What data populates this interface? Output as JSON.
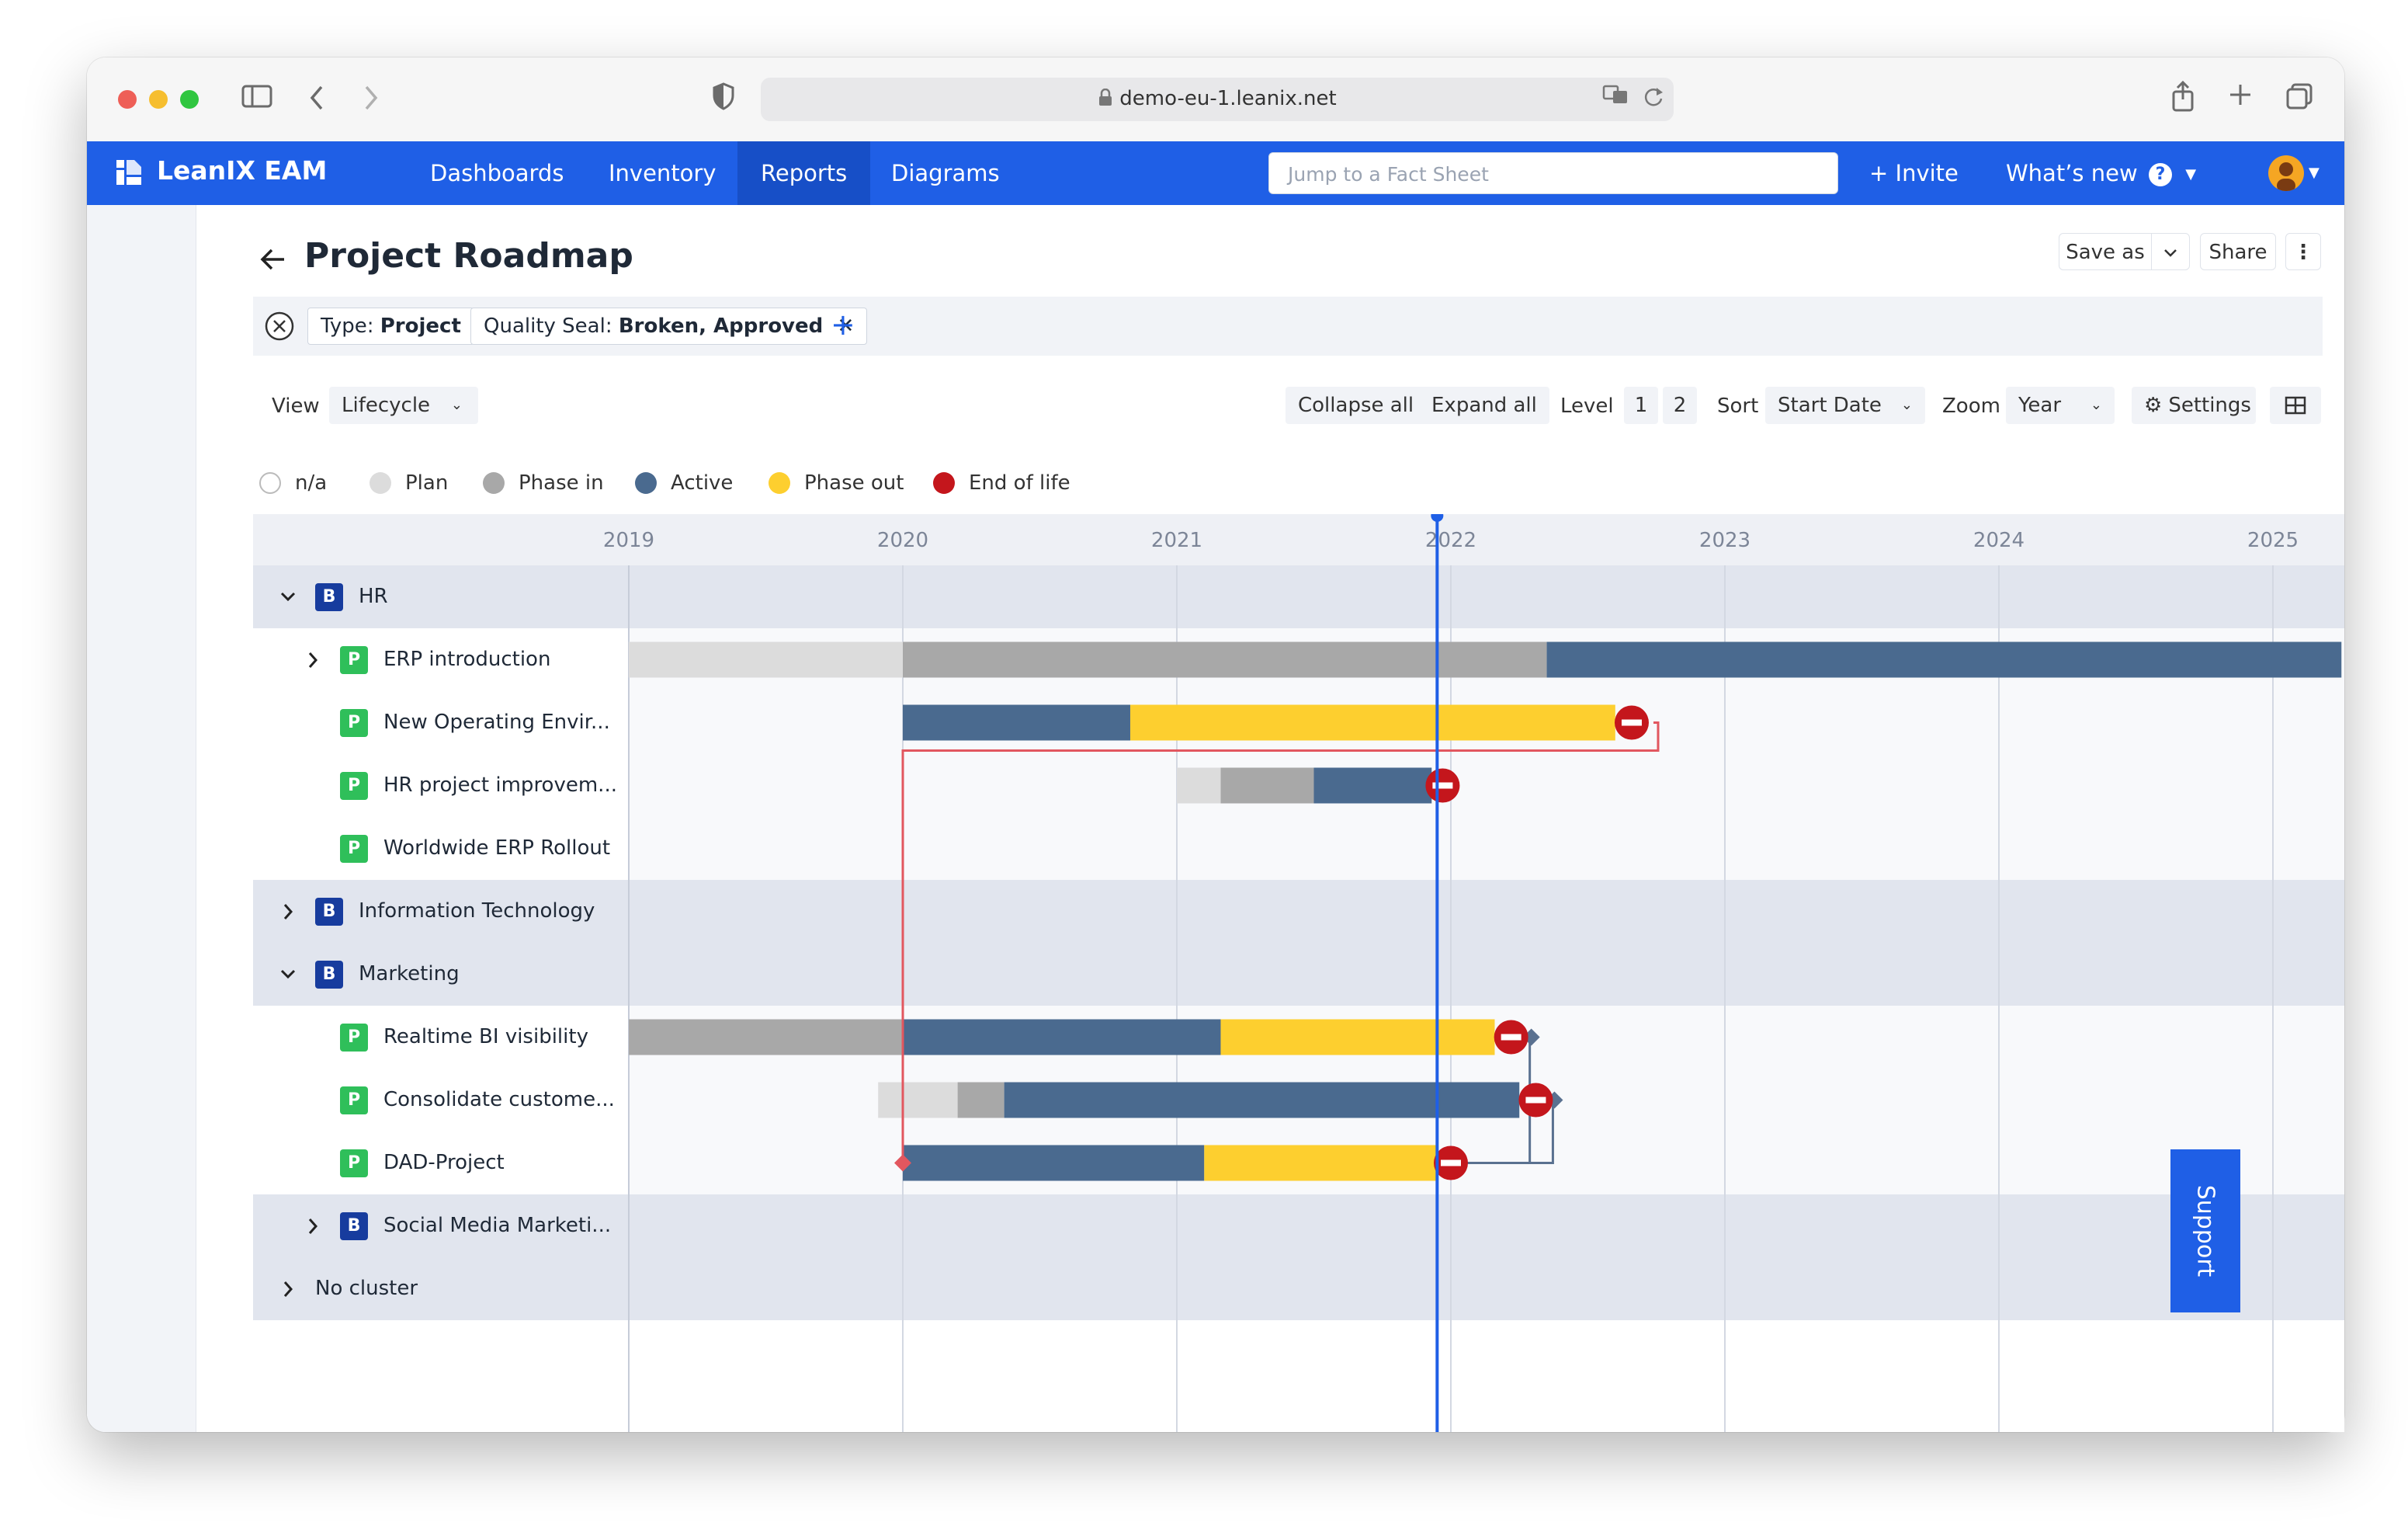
{
  "browser": {
    "url": "demo-eu-1.leanix.net"
  },
  "app": {
    "brand": "LeanIX EAM",
    "nav": [
      "Dashboards",
      "Inventory",
      "Reports",
      "Diagrams"
    ],
    "active_nav": "Reports",
    "search_placeholder": "Jump to a Fact Sheet",
    "invite": "+ Invite",
    "whats_new": "What’s new",
    "help": "?"
  },
  "page": {
    "title": "Project Roadmap",
    "save_as": "Save as",
    "share": "Share",
    "more": "⋮"
  },
  "filters": [
    {
      "key": "Type:",
      "value": "Project"
    },
    {
      "key": "Quality Seal:",
      "value": "Broken, Approved"
    }
  ],
  "toolbar": {
    "view_label": "View",
    "view_value": "Lifecycle",
    "collapse_all": "Collapse all",
    "expand_all": "Expand all",
    "level_label": "Level",
    "levels": [
      "1",
      "2"
    ],
    "sort_label": "Sort",
    "sort_value": "Start Date",
    "zoom_label": "Zoom",
    "zoom_value": "Year",
    "settings": "Settings"
  },
  "legend": [
    {
      "label": "n/a",
      "color": "#ffffff"
    },
    {
      "label": "Plan",
      "color": "#dcdcdc"
    },
    {
      "label": "Phase in",
      "color": "#a8a8a8"
    },
    {
      "label": "Active",
      "color": "#4a6a8f"
    },
    {
      "label": "Phase out",
      "color": "#fdcf2f"
    },
    {
      "label": "End of life",
      "color": "#c4161c"
    }
  ],
  "timeline": {
    "years": [
      "2019",
      "2020",
      "2021",
      "2022",
      "2023",
      "2024",
      "2025"
    ],
    "today": 2021.95
  },
  "rows": [
    {
      "type": "B",
      "label": "HR",
      "level": 0,
      "expanded": true,
      "group": true
    },
    {
      "type": "P",
      "label": "ERP introduction",
      "level": 1,
      "expandable": true,
      "segments": [
        {
          "phase": "Plan",
          "from": 2019.0,
          "to": 2020.0
        },
        {
          "phase": "Phase in",
          "from": 2020.0,
          "to": 2022.35
        },
        {
          "phase": "Active",
          "from": 2022.35,
          "to": 2025.25
        }
      ]
    },
    {
      "type": "P",
      "label": "New Operating Envir...",
      "level": 1,
      "segments": [
        {
          "phase": "Active",
          "from": 2020.0,
          "to": 2020.83
        },
        {
          "phase": "Phase out",
          "from": 2020.83,
          "to": 2022.6
        }
      ],
      "eol": 2022.66
    },
    {
      "type": "P",
      "label": "HR project improvem...",
      "level": 1,
      "segments": [
        {
          "phase": "Plan",
          "from": 2021.0,
          "to": 2021.16
        },
        {
          "phase": "Phase in",
          "from": 2021.16,
          "to": 2021.5
        },
        {
          "phase": "Active",
          "from": 2021.5,
          "to": 2021.93
        }
      ],
      "eol": 2021.97
    },
    {
      "type": "P",
      "label": "Worldwide ERP Rollout",
      "level": 1,
      "segments": []
    },
    {
      "type": "B",
      "label": "Information Technology",
      "level": 0,
      "expanded": false,
      "group": true
    },
    {
      "type": "B",
      "label": "Marketing",
      "level": 0,
      "expanded": true,
      "group": true
    },
    {
      "type": "P",
      "label": "Realtime BI visibility",
      "level": 1,
      "segments": [
        {
          "phase": "Phase in",
          "from": 2019.0,
          "to": 2020.0
        },
        {
          "phase": "Active",
          "from": 2020.0,
          "to": 2021.16
        },
        {
          "phase": "Phase out",
          "from": 2021.16,
          "to": 2022.16
        }
      ],
      "eol": 2022.22
    },
    {
      "type": "P",
      "label": "Consolidate custome...",
      "level": 1,
      "segments": [
        {
          "phase": "Plan",
          "from": 2019.91,
          "to": 2020.2
        },
        {
          "phase": "Phase in",
          "from": 2020.2,
          "to": 2020.37
        },
        {
          "phase": "Active",
          "from": 2020.37,
          "to": 2022.25
        }
      ],
      "eol": 2022.31
    },
    {
      "type": "P",
      "label": "DAD-Project",
      "level": 1,
      "segments": [
        {
          "phase": "Active",
          "from": 2020.0,
          "to": 2021.1
        },
        {
          "phase": "Phase out",
          "from": 2021.1,
          "to": 2021.95
        }
      ],
      "eol": 2022.0
    },
    {
      "type": "B",
      "label": "Social Media Marketi...",
      "level": 1,
      "expanded": false,
      "group": true
    },
    {
      "type": "",
      "label": "No cluster",
      "level": 0,
      "expanded": false,
      "group": true
    }
  ],
  "support": "Support"
}
